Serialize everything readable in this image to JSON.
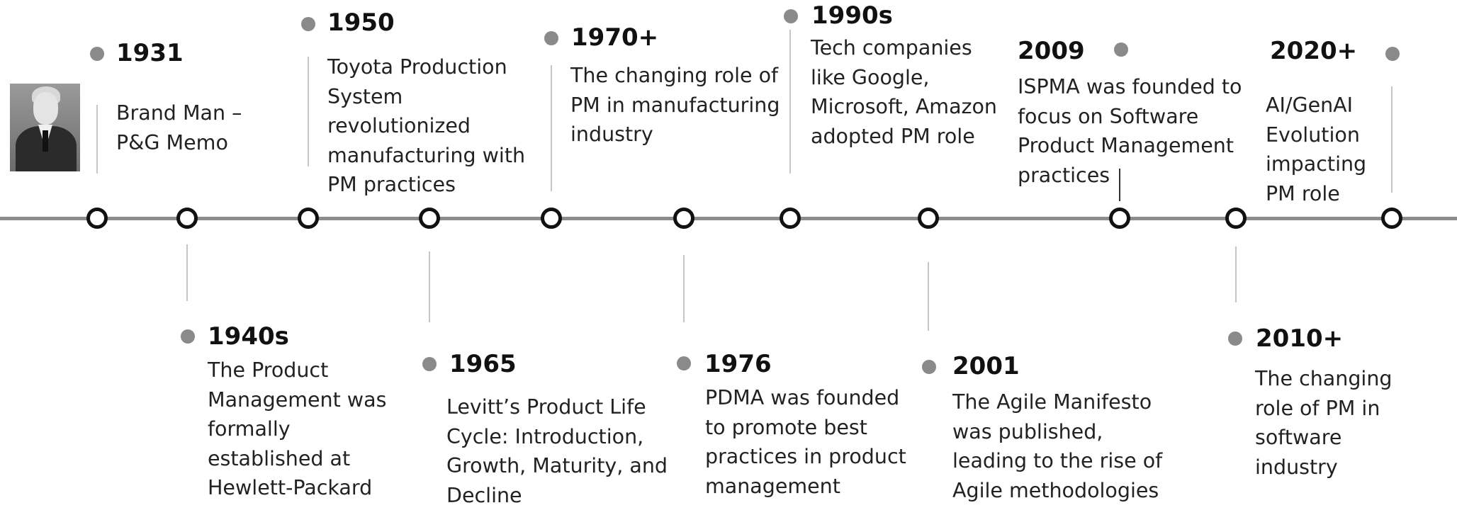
{
  "milestones": [
    {
      "year": "1931",
      "description": "Brand Man –\nP&G Memo"
    },
    {
      "year": "1940s",
      "description": "The Product\nManagement was\nformally\nestablished at\nHewlett-Packard"
    },
    {
      "year": "1950",
      "description": "Toyota Production\nSystem\nrevolutionized\nmanufacturing with\nPM practices"
    },
    {
      "year": "1965",
      "description": "Levitt’s Product Life\nCycle: Introduction,\nGrowth, Maturity, and\nDecline"
    },
    {
      "year": "1970+",
      "description": "The changing role of\nPM in manufacturing\nindustry"
    },
    {
      "year": "1976",
      "description": "PDMA was founded\nto promote best\npractices in product\nmanagement"
    },
    {
      "year": "1990s",
      "description": "Tech companies\nlike Google,\nMicrosoft, Amazon\nadopted PM role"
    },
    {
      "year": "2001",
      "description": "The Agile Manifesto\nwas published,\nleading to the rise of\nAgile methodologies"
    },
    {
      "year": "2009",
      "description": "ISPMA was founded to\nfocus on Software\nProduct Management\npractices"
    },
    {
      "year": "2010+",
      "description": "The changing\nrole of PM in\nsoftware\nindustry"
    },
    {
      "year": "2020+",
      "description": "AI/GenAI\nEvolution\nimpacting\nPM role"
    }
  ],
  "photo": {
    "alt": "Portrait photograph"
  }
}
